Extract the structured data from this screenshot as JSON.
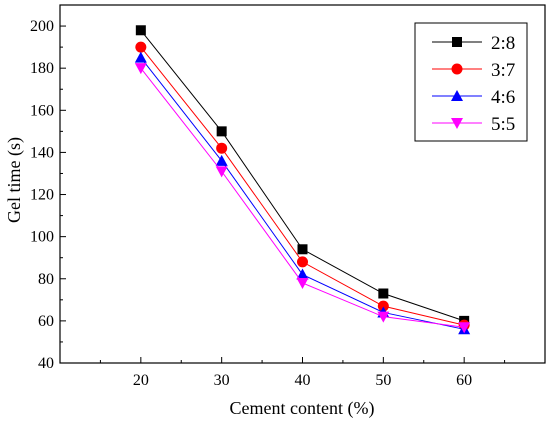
{
  "chart_data": {
    "type": "line",
    "title": "",
    "xlabel": "Cement content (%)",
    "ylabel": "Gel time (s)",
    "x": [
      20,
      30,
      40,
      50,
      60
    ],
    "xlim": [
      10,
      70
    ],
    "ylim": [
      40,
      210
    ],
    "xticks": [
      20,
      30,
      40,
      50,
      60
    ],
    "yticks": [
      40,
      60,
      80,
      100,
      120,
      140,
      160,
      180,
      200
    ],
    "grid": false,
    "legend_position": "top-right",
    "series": [
      {
        "name": "2:8",
        "values": [
          198,
          150,
          94,
          73,
          60
        ],
        "color": "#000000",
        "marker": "square"
      },
      {
        "name": "3:7",
        "values": [
          190,
          142,
          88,
          67,
          58
        ],
        "color": "#ff0000",
        "marker": "circle"
      },
      {
        "name": "4:6",
        "values": [
          185,
          136,
          82,
          64,
          56
        ],
        "color": "#0000ff",
        "marker": "triangle-up"
      },
      {
        "name": "5:5",
        "values": [
          180,
          131,
          78,
          62,
          57
        ],
        "color": "#ff00ff",
        "marker": "triangle-down"
      }
    ]
  }
}
